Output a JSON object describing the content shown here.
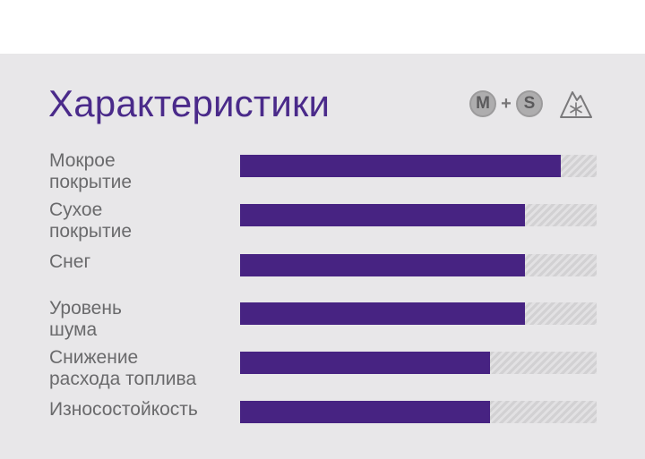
{
  "header": {
    "title": "Характеристики",
    "badge_m": "M",
    "badge_plus": "+",
    "badge_s": "S",
    "winter_icon": "mountain-snowflake-icon"
  },
  "colors": {
    "title": "#4a2a8a",
    "bar_fill": "#472382",
    "panel": "#e8e7e9"
  },
  "ratings": [
    {
      "label": "Мокрое\nпокрытие",
      "value": 0.9
    },
    {
      "label": "Сухое\nпокрытие",
      "value": 0.8
    },
    {
      "label": "Снег",
      "value": 0.8
    },
    {
      "label": "Уровень\nшума",
      "value": 0.8
    },
    {
      "label": "Снижение\nрасхода топлива",
      "value": 0.7
    },
    {
      "label": "Износостойкость",
      "value": 0.7
    }
  ]
}
